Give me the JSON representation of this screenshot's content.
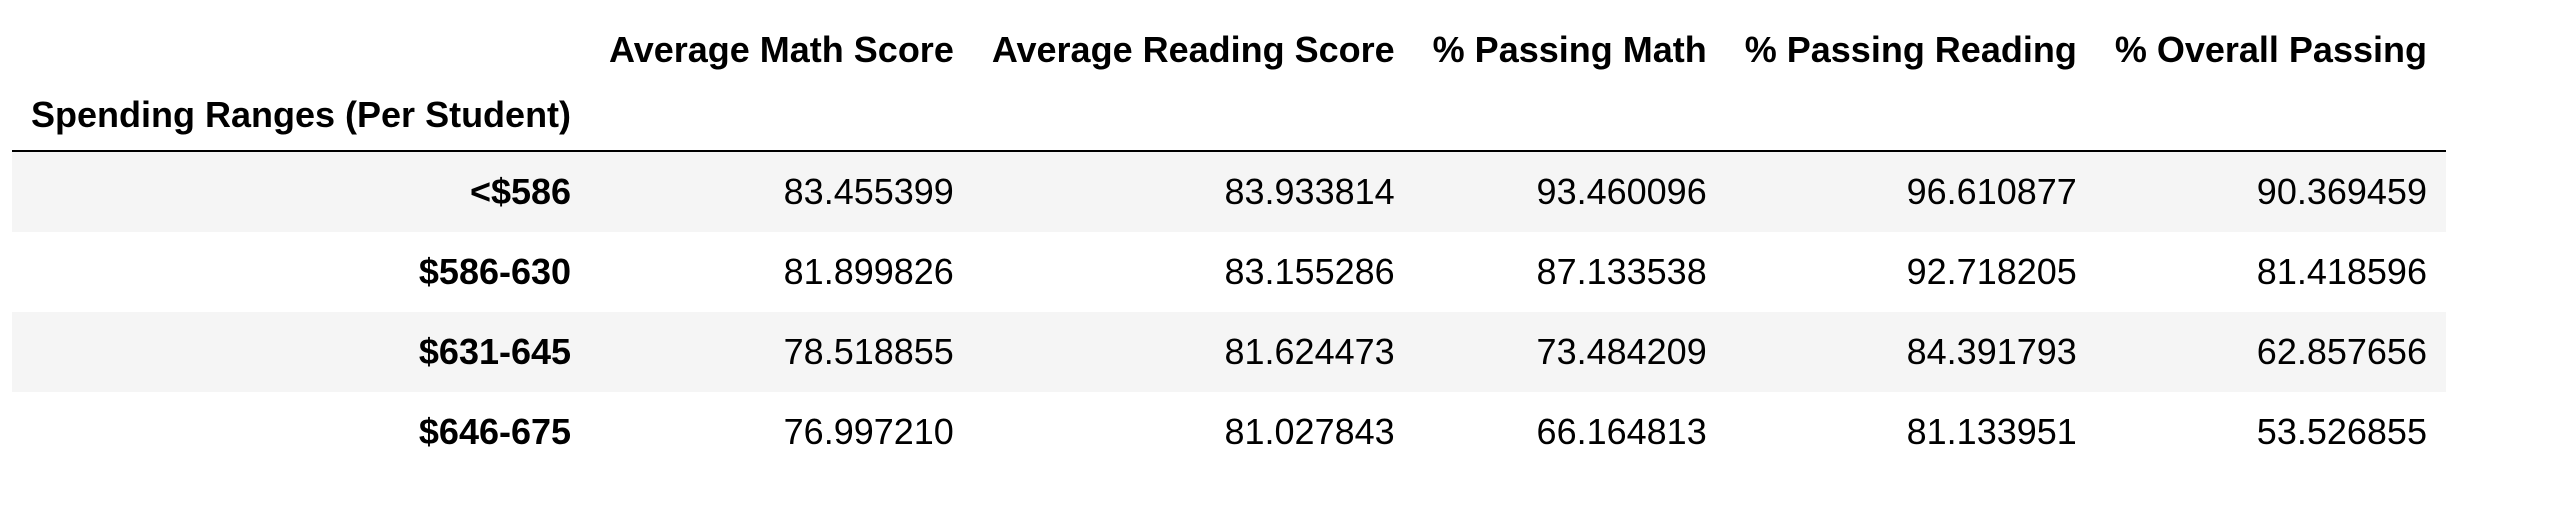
{
  "table": {
    "columns": [
      "Average Math Score",
      "Average Reading Score",
      "% Passing Math",
      "% Passing Reading",
      "% Overall Passing"
    ],
    "index_name": "Spending Ranges (Per Student)",
    "rows": [
      {
        "label": "<$586",
        "values": [
          "83.455399",
          "83.933814",
          "93.460096",
          "96.610877",
          "90.369459"
        ]
      },
      {
        "label": "$586-630",
        "values": [
          "81.899826",
          "83.155286",
          "87.133538",
          "92.718205",
          "81.418596"
        ]
      },
      {
        "label": "$631-645",
        "values": [
          "78.518855",
          "81.624473",
          "73.484209",
          "84.391793",
          "62.857656"
        ]
      },
      {
        "label": "$646-675",
        "values": [
          "76.997210",
          "81.027843",
          "66.164813",
          "81.133951",
          "53.526855"
        ]
      }
    ]
  },
  "colors": {
    "stripe": "#f5f5f5",
    "rule": "#000000"
  }
}
